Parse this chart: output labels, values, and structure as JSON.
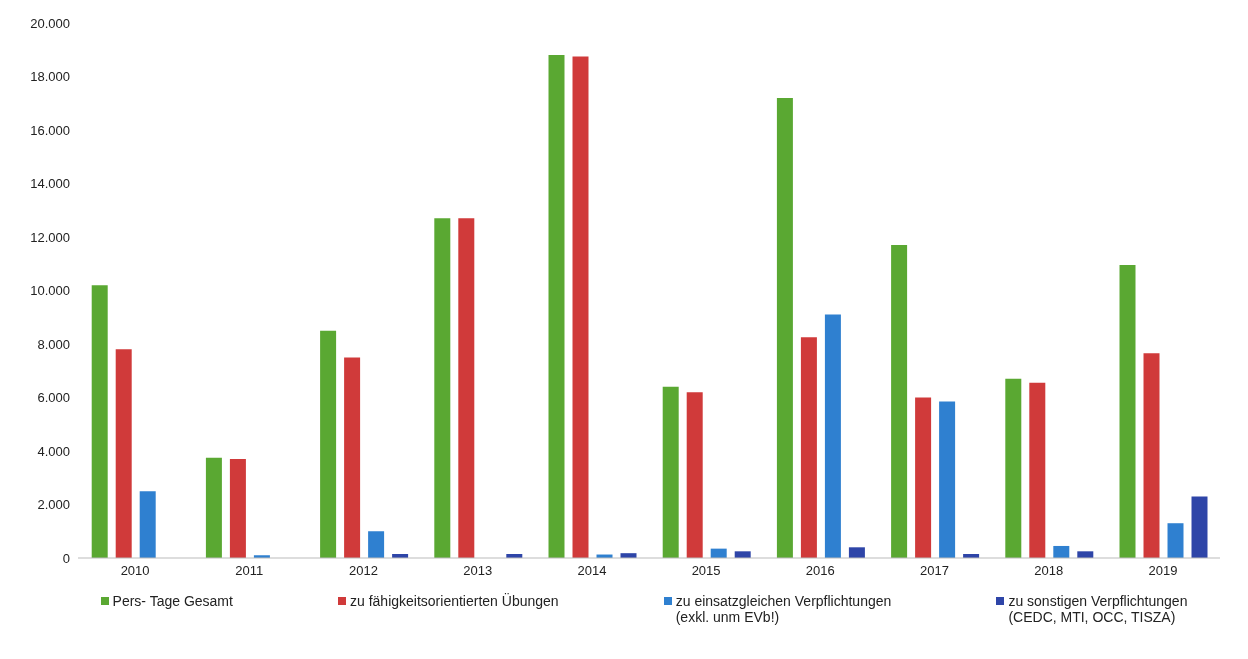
{
  "chart_data": {
    "type": "bar",
    "categories": [
      "2010",
      "2011",
      "2012",
      "2013",
      "2014",
      "2015",
      "2016",
      "2017",
      "2018",
      "2019"
    ],
    "series": [
      {
        "name": "Pers- Tage Gesamt",
        "color": "#5aa832",
        "values": [
          10200,
          3750,
          8500,
          12700,
          18800,
          6400,
          17200,
          11700,
          6700,
          10950
        ]
      },
      {
        "name": "zu fähigkeitsorientierten Übungen",
        "color": "#d03a3a",
        "values": [
          7800,
          3700,
          7500,
          12700,
          18750,
          6200,
          8250,
          6000,
          6550,
          7650
        ]
      },
      {
        "name": "zu einsatzgleichen Verpflichtungen\n(exkl. unm EVb!)",
        "color": "#2f80d0",
        "values": [
          2500,
          100,
          1000,
          0,
          130,
          350,
          9100,
          5850,
          450,
          1300
        ]
      },
      {
        "name": "zu sonstigen Verpflichtungen\n(CEDC, MTI, OCC, TISZA)",
        "color": "#2e45a8",
        "values": [
          0,
          0,
          150,
          150,
          180,
          250,
          400,
          150,
          250,
          2300
        ]
      }
    ],
    "ylim": [
      0,
      20000
    ],
    "yticks": [
      {
        "value": 0,
        "label": "0"
      },
      {
        "value": 2000,
        "label": "2.000"
      },
      {
        "value": 4000,
        "label": "4.000"
      },
      {
        "value": 6000,
        "label": "6.000"
      },
      {
        "value": 8000,
        "label": "8.000"
      },
      {
        "value": 10000,
        "label": "10.000"
      },
      {
        "value": 12000,
        "label": "12.000"
      },
      {
        "value": 14000,
        "label": "14.000"
      },
      {
        "value": 16000,
        "label": "16.000"
      },
      {
        "value": 18000,
        "label": "18.000"
      },
      {
        "value": 20000,
        "label": "20.000"
      }
    ],
    "grid": false,
    "legend": "bottom"
  }
}
